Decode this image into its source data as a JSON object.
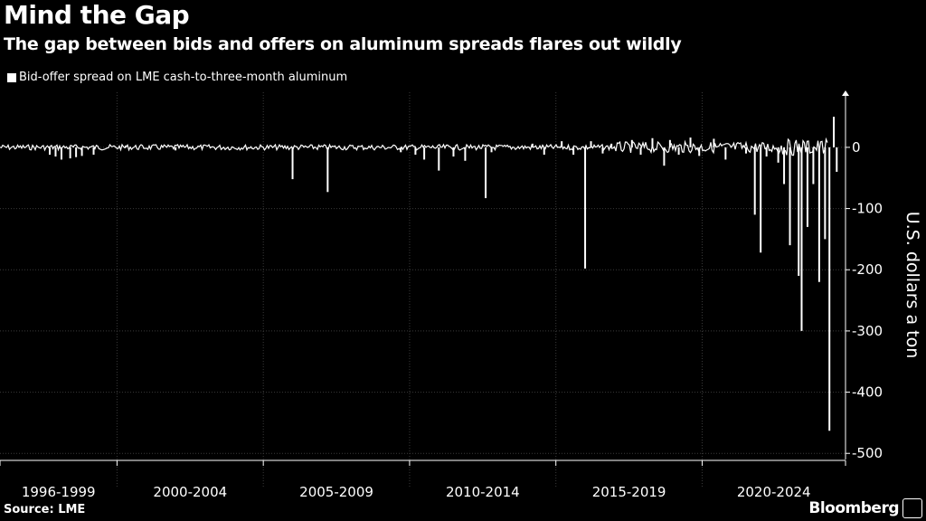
{
  "title": "Mind the Gap",
  "subtitle": "The gap between bids and offers on aluminum spreads flares out wildly",
  "legend_label": "Bid-offer spread on LME cash-to-three-month aluminum",
  "source": "Source: LME",
  "brand": "Bloomberg",
  "colors": {
    "background": "#000000",
    "series": "#ffffff",
    "grid": "#3a3a3a",
    "text": "#ffffff"
  },
  "chart_data": {
    "type": "line",
    "title": "Mind the Gap",
    "subtitle": "The gap between bids and offers on aluminum spreads flares out wildly",
    "ylabel": "U.S. dollars a ton",
    "ylim": [
      -510,
      90
    ],
    "xlim": [
      1996.0,
      2024.9
    ],
    "yticks": [
      0,
      -100,
      -200,
      -300,
      -400,
      -500
    ],
    "ytick_labels": [
      "0",
      "-100",
      "-200",
      "-300",
      "-400",
      "-500"
    ],
    "y_axis_side": "right",
    "x_period_labels": [
      "1996-1999",
      "2000-2004",
      "2005-2009",
      "2010-2014",
      "2015-2019",
      "2020-2024"
    ],
    "x_period_boundaries": [
      1996.0,
      2000.0,
      2005.0,
      2010.0,
      2015.0,
      2020.0,
      2024.9
    ],
    "grid": true,
    "legend_position": "top-left",
    "series": [
      {
        "name": "Bid-offer spread on LME cash-to-three-month aluminum",
        "baseline": 0,
        "points": [
          [
            1997.7,
            -12
          ],
          [
            1997.9,
            -15
          ],
          [
            1998.1,
            -20
          ],
          [
            1998.4,
            -18
          ],
          [
            1998.6,
            -16
          ],
          [
            1998.8,
            -14
          ],
          [
            1999.2,
            -12
          ],
          [
            2000.3,
            3
          ],
          [
            2002.0,
            -5
          ],
          [
            2006.0,
            -52
          ],
          [
            2007.2,
            -73
          ],
          [
            2009.7,
            -8
          ],
          [
            2010.2,
            -12
          ],
          [
            2010.5,
            -20
          ],
          [
            2011.0,
            -38
          ],
          [
            2011.5,
            -15
          ],
          [
            2011.9,
            -22
          ],
          [
            2012.6,
            -83
          ],
          [
            2012.8,
            -8
          ],
          [
            2014.2,
            6
          ],
          [
            2014.6,
            -12
          ],
          [
            2015.2,
            10
          ],
          [
            2015.6,
            -12
          ],
          [
            2016.0,
            -198
          ],
          [
            2016.2,
            10
          ],
          [
            2016.6,
            -10
          ],
          [
            2016.9,
            6
          ],
          [
            2017.6,
            12
          ],
          [
            2017.9,
            -12
          ],
          [
            2018.3,
            15
          ],
          [
            2018.7,
            -30
          ],
          [
            2018.9,
            12
          ],
          [
            2019.2,
            -12
          ],
          [
            2019.6,
            16
          ],
          [
            2019.9,
            -14
          ],
          [
            2020.4,
            14
          ],
          [
            2020.8,
            -20
          ],
          [
            2021.5,
            -10
          ],
          [
            2021.8,
            -110
          ],
          [
            2022.0,
            -172
          ],
          [
            2022.2,
            -15
          ],
          [
            2022.6,
            -25
          ],
          [
            2022.8,
            -60
          ],
          [
            2023.0,
            -160
          ],
          [
            2023.3,
            -210
          ],
          [
            2023.4,
            -300
          ],
          [
            2023.6,
            -130
          ],
          [
            2023.8,
            -60
          ],
          [
            2024.0,
            -220
          ],
          [
            2024.2,
            -150
          ],
          [
            2024.35,
            -463
          ],
          [
            2024.5,
            50
          ],
          [
            2024.6,
            -40
          ]
        ]
      }
    ]
  }
}
